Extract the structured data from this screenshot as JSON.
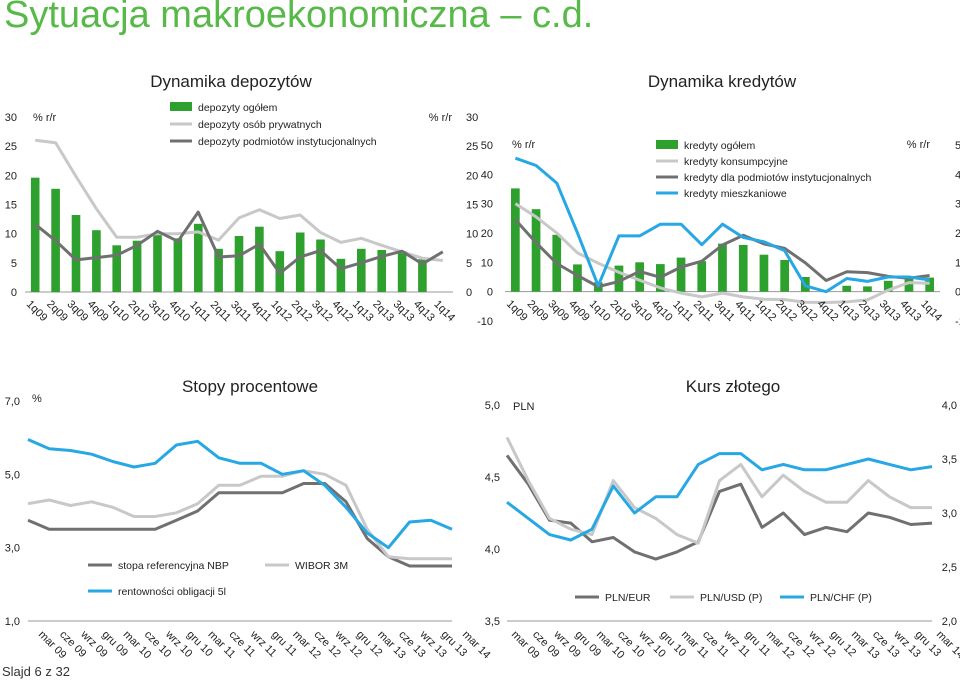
{
  "page": {
    "title": "Sytuacja makroekonomiczna – c.d.",
    "slide_label": "Slajd 6 z 32"
  },
  "colors": {
    "green": "#2ea02e",
    "grey_light": "#c8c8c8",
    "grey_dark": "#707070",
    "blue": "#27a7e3",
    "title_green": "#57b947"
  },
  "chart_data": [
    {
      "id": "deposits",
      "type": "bar+line",
      "title": "Dynamika depozytów",
      "ylabel_left": "% r/r",
      "ylabel_right": "% r/r",
      "ylim": [
        0,
        30
      ],
      "yticks": [
        0,
        5,
        10,
        15,
        20,
        25,
        30
      ],
      "categories": [
        "1q09",
        "2q09",
        "3q09",
        "4q09",
        "1q10",
        "2q10",
        "3q10",
        "4q10",
        "1q11",
        "2q11",
        "3q11",
        "4q11",
        "1q12",
        "2q12",
        "3q12",
        "4q12",
        "1q13",
        "2q13",
        "3q13",
        "4q13",
        "1q14"
      ],
      "series": [
        {
          "name": "depozyty ogółem",
          "kind": "bar",
          "color": "#2ea02e",
          "values": [
            19.6,
            17.7,
            13.2,
            10.6,
            8.0,
            8.8,
            9.8,
            9.2,
            11.7,
            7.4,
            9.6,
            11.2,
            7.0,
            10.2,
            9.0,
            5.7,
            7.4,
            7.2,
            7.0,
            5.6,
            null
          ]
        },
        {
          "name": "depozyty osób prywatnych",
          "kind": "line",
          "color": "#c8c8c8",
          "values": [
            26.0,
            25.6,
            19.8,
            14.3,
            9.4,
            9.4,
            10.0,
            10.0,
            10.3,
            8.9,
            12.7,
            14.1,
            12.6,
            13.2,
            10.2,
            8.5,
            9.2,
            8.0,
            6.9,
            5.8,
            5.4
          ]
        },
        {
          "name": "depozyty podmiotów instytucjonalnych",
          "kind": "line",
          "color": "#707070",
          "values": [
            11.6,
            8.8,
            5.5,
            5.9,
            6.3,
            8.0,
            10.4,
            8.7,
            13.7,
            6.0,
            6.2,
            8.2,
            3.2,
            6.0,
            7.1,
            4.0,
            5.0,
            6.1,
            7.0,
            4.8,
            6.9
          ]
        }
      ]
    },
    {
      "id": "loans",
      "type": "bar+line",
      "title": "Dynamika kredytów",
      "ylabel_left": "% r/r",
      "ylabel_right": "% r/r",
      "ylim": [
        -10,
        50
      ],
      "yticks": [
        -10,
        0,
        10,
        20,
        30,
        40,
        50
      ],
      "categories": [
        "1q09",
        "2q09",
        "3q09",
        "4q09",
        "1q10",
        "2q10",
        "3q10",
        "4q10",
        "1q11",
        "2q11",
        "3q11",
        "4q11",
        "1q12",
        "2q12",
        "3q12",
        "4q12",
        "1q13",
        "2q13",
        "3q13",
        "4q13",
        "1q14"
      ],
      "series": [
        {
          "name": "kredyty ogółem",
          "kind": "bar",
          "color": "#2ea02e",
          "values": [
            35.2,
            28.1,
            19.4,
            9.3,
            3.2,
            8.9,
            10.0,
            9.4,
            11.6,
            10.4,
            16.4,
            15.9,
            12.6,
            10.8,
            5.0,
            null,
            2.0,
            1.8,
            3.7,
            4.6,
            4.8
          ]
        },
        {
          "name": "kredyty konsumpcyjne",
          "kind": "line",
          "color": "#c8c8c8",
          "values": [
            30.0,
            25.5,
            20.0,
            13.2,
            9.7,
            6.6,
            3.9,
            1.3,
            -0.5,
            -1.8,
            -0.5,
            -1.8,
            -2.6,
            -2.7,
            -3.6,
            -3.7,
            -3.5,
            -2.8,
            0.5,
            3.1,
            2.9
          ]
        },
        {
          "name": "kredyty dla podmiotów instytucjonalnych",
          "kind": "line",
          "color": "#707070",
          "values": [
            24.5,
            16.7,
            9.6,
            5.5,
            1.7,
            3.5,
            6.9,
            4.9,
            8.4,
            10.4,
            15.9,
            19.2,
            16.3,
            14.8,
            9.8,
            3.8,
            6.8,
            6.5,
            5.2,
            4.6,
            5.5
          ]
        },
        {
          "name": "kredyty mieszkaniowe",
          "kind": "line",
          "color": "#27a7e3",
          "values": [
            45.5,
            43.0,
            37.0,
            20.0,
            2.0,
            19.0,
            19.0,
            23.0,
            23.0,
            16.0,
            23.0,
            18.5,
            17.0,
            14.0,
            2.0,
            0.0,
            4.5,
            3.5,
            5.0,
            5.0,
            4.0
          ]
        }
      ]
    },
    {
      "id": "rates",
      "type": "line",
      "title": "Stopy procentowe",
      "ylabel_left": "%",
      "ylim": [
        1.0,
        7.0
      ],
      "yticks": [
        "1,0",
        "3,0",
        "5,0",
        "7,0"
      ],
      "xticks": [
        "mar 09",
        "cze 09",
        "wrz 09",
        "gru 09",
        "mar 10",
        "cze 10",
        "wrz 10",
        "gru 10",
        "mar 11",
        "cze 11",
        "wrz 11",
        "gru 11",
        "mar 12",
        "cze 12",
        "wrz 12",
        "gru 12",
        "mar 13",
        "cze 13",
        "wrz 13",
        "gru 13",
        "mar 14"
      ],
      "series": [
        {
          "name": "stopa referencyjna NBP",
          "color": "#707070",
          "values": [
            3.75,
            3.5,
            3.5,
            3.5,
            3.5,
            3.5,
            3.5,
            3.75,
            4.0,
            4.5,
            4.5,
            4.5,
            4.5,
            4.75,
            4.75,
            4.25,
            3.25,
            2.75,
            2.5,
            2.5,
            2.5
          ]
        },
        {
          "name": "WIBOR 3M",
          "color": "#c8c8c8",
          "values": [
            4.2,
            4.3,
            4.15,
            4.25,
            4.1,
            3.85,
            3.85,
            3.95,
            4.2,
            4.7,
            4.7,
            4.95,
            4.95,
            5.1,
            5.0,
            4.7,
            3.5,
            2.75,
            2.7,
            2.7,
            2.7
          ]
        },
        {
          "name": "rentowności obligacji 5l",
          "color": "#27a7e3",
          "values": [
            5.95,
            5.7,
            5.65,
            5.55,
            5.35,
            5.2,
            5.3,
            5.8,
            5.9,
            5.45,
            5.3,
            5.3,
            5.0,
            5.1,
            4.7,
            4.1,
            3.4,
            3.0,
            3.7,
            3.75,
            3.5
          ]
        }
      ]
    },
    {
      "id": "fx",
      "type": "line",
      "title": "Kurs złotego",
      "ylabel_left": "PLN",
      "ylim_left": [
        3.5,
        5.0
      ],
      "ylim_right": [
        2.0,
        4.0
      ],
      "yticks_left": [
        "3,5",
        "4,0",
        "4,5",
        "5,0"
      ],
      "yticks_right": [
        "2,0",
        "2,5",
        "3,0",
        "3,5",
        "4,0"
      ],
      "xticks": [
        "mar 09",
        "cze 09",
        "wrz 09",
        "gru 09",
        "mar 10",
        "cze 10",
        "wrz 10",
        "gru 10",
        "mar 11",
        "cze 11",
        "wrz 11",
        "gru 11",
        "mar 12",
        "cze 12",
        "wrz 12",
        "gru 12",
        "mar 13",
        "cze 13",
        "wrz 13",
        "gru 13",
        "mar 14"
      ],
      "series": [
        {
          "name": "PLN/EUR",
          "axis": "left",
          "color": "#707070",
          "values": [
            4.65,
            4.45,
            4.2,
            4.18,
            4.05,
            4.08,
            3.98,
            3.93,
            3.98,
            4.05,
            4.4,
            4.45,
            4.15,
            4.25,
            4.1,
            4.15,
            4.12,
            4.25,
            4.22,
            4.17,
            4.18
          ]
        },
        {
          "name": "PLN/USD (P)",
          "axis": "right",
          "color": "#c8c8c8",
          "values": [
            3.7,
            3.3,
            2.95,
            2.85,
            2.8,
            3.3,
            3.05,
            2.95,
            2.8,
            2.72,
            3.3,
            3.45,
            3.15,
            3.35,
            3.2,
            3.1,
            3.1,
            3.3,
            3.15,
            3.05,
            3.05
          ]
        },
        {
          "name": "PLN/CHF (P)",
          "axis": "right",
          "color": "#27a7e3",
          "values": [
            3.1,
            2.95,
            2.8,
            2.75,
            2.85,
            3.25,
            3.0,
            3.15,
            3.15,
            3.45,
            3.55,
            3.55,
            3.4,
            3.45,
            3.4,
            3.4,
            3.45,
            3.5,
            3.45,
            3.4,
            3.43
          ]
        }
      ]
    }
  ]
}
